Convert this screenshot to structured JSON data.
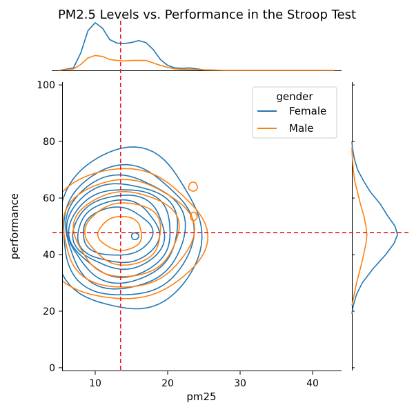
{
  "chart_data": {
    "type": "kde-joint",
    "title": "PM2.5 Levels vs. Performance in the Stroop Test",
    "xlabel": "pm25",
    "ylabel": "performance",
    "xlim": [
      4,
      44
    ],
    "ylim": [
      -1,
      101
    ],
    "xticks": [
      10,
      20,
      30,
      40
    ],
    "yticks": [
      0,
      20,
      40,
      60,
      80,
      100
    ],
    "reference_lines": {
      "x": 13.5,
      "y": 47.8,
      "color": "#e41a1c"
    },
    "legend": {
      "title": "gender",
      "position": "top-right"
    },
    "series": [
      {
        "name": "Female",
        "color": "#1f77b4",
        "contours": [
          {
            "cx": 14.5,
            "cy": 48.5,
            "rx": 10.0,
            "ry": 28.5
          },
          {
            "cx": 14.3,
            "cy": 48.0,
            "rx": 9.0,
            "ry": 23.0
          },
          {
            "cx": 14.0,
            "cy": 48.0,
            "rx": 8.2,
            "ry": 20.0
          },
          {
            "cx": 13.8,
            "cy": 48.0,
            "rx": 7.6,
            "ry": 17.5
          },
          {
            "cx": 13.6,
            "cy": 48.0,
            "rx": 7.0,
            "ry": 15.5
          },
          {
            "cx": 13.4,
            "cy": 48.0,
            "rx": 6.3,
            "ry": 13.0
          },
          {
            "cx": 13.2,
            "cy": 48.0,
            "rx": 5.6,
            "ry": 11.0
          },
          {
            "cx": 13.0,
            "cy": 48.0,
            "rx": 4.8,
            "ry": 8.5
          },
          {
            "cx": 15.5,
            "cy": 46.5,
            "rx": 0.5,
            "ry": 1.2
          }
        ],
        "marginal_x": [
          [
            5,
            0
          ],
          [
            7,
            0.05
          ],
          [
            8,
            0.35
          ],
          [
            9,
            0.8
          ],
          [
            10,
            0.96
          ],
          [
            11,
            0.85
          ],
          [
            12,
            0.62
          ],
          [
            13,
            0.55
          ],
          [
            14,
            0.54
          ],
          [
            15,
            0.56
          ],
          [
            16,
            0.6
          ],
          [
            17,
            0.56
          ],
          [
            18,
            0.42
          ],
          [
            19,
            0.22
          ],
          [
            20,
            0.1
          ],
          [
            21,
            0.05
          ],
          [
            22,
            0.04
          ],
          [
            23,
            0.05
          ],
          [
            24,
            0.03
          ],
          [
            25,
            0.01
          ],
          [
            28,
            0
          ],
          [
            43,
            0
          ]
        ],
        "marginal_y": [
          [
            19,
            0
          ],
          [
            22,
            0.03
          ],
          [
            26,
            0.1
          ],
          [
            30,
            0.22
          ],
          [
            35,
            0.45
          ],
          [
            40,
            0.72
          ],
          [
            44,
            0.9
          ],
          [
            47,
            0.97
          ],
          [
            50,
            0.92
          ],
          [
            54,
            0.75
          ],
          [
            58,
            0.6
          ],
          [
            62,
            0.4
          ],
          [
            66,
            0.25
          ],
          [
            70,
            0.12
          ],
          [
            74,
            0.05
          ],
          [
            78,
            0.01
          ],
          [
            80,
            0
          ]
        ]
      },
      {
        "name": "Male",
        "color": "#ff7f0e",
        "contours": [
          {
            "cx": 14.0,
            "cy": 47.0,
            "rx": 11.0,
            "ry": 23.0
          },
          {
            "cx": 14.3,
            "cy": 47.5,
            "rx": 9.0,
            "ry": 19.0
          },
          {
            "cx": 14.3,
            "cy": 47.5,
            "rx": 7.2,
            "ry": 15.0
          },
          {
            "cx": 14.0,
            "cy": 47.5,
            "rx": 5.2,
            "ry": 11.0
          },
          {
            "cx": 13.5,
            "cy": 47.5,
            "rx": 3.0,
            "ry": 6.0
          },
          {
            "cx": 23.5,
            "cy": 64.0,
            "rx": 0.6,
            "ry": 1.6
          },
          {
            "cx": 23.6,
            "cy": 53.5,
            "rx": 0.45,
            "ry": 1.5
          }
        ],
        "marginal_x": [
          [
            5,
            0
          ],
          [
            7,
            0.03
          ],
          [
            8,
            0.12
          ],
          [
            9,
            0.25
          ],
          [
            10,
            0.3
          ],
          [
            11,
            0.28
          ],
          [
            12,
            0.22
          ],
          [
            13,
            0.2
          ],
          [
            14,
            0.19
          ],
          [
            15,
            0.2
          ],
          [
            16,
            0.2
          ],
          [
            17,
            0.2
          ],
          [
            18,
            0.15
          ],
          [
            19,
            0.1
          ],
          [
            20,
            0.06
          ],
          [
            21,
            0.03
          ],
          [
            22,
            0.02
          ],
          [
            23,
            0.02
          ],
          [
            25,
            0.01
          ],
          [
            28,
            0
          ],
          [
            43,
            0
          ]
        ],
        "marginal_y": [
          [
            22,
            0
          ],
          [
            26,
            0.05
          ],
          [
            30,
            0.1
          ],
          [
            35,
            0.18
          ],
          [
            40,
            0.25
          ],
          [
            44,
            0.3
          ],
          [
            47,
            0.32
          ],
          [
            50,
            0.3
          ],
          [
            54,
            0.25
          ],
          [
            58,
            0.18
          ],
          [
            62,
            0.12
          ],
          [
            66,
            0.06
          ],
          [
            70,
            0.03
          ],
          [
            74,
            0.01
          ],
          [
            78,
            0
          ]
        ]
      }
    ]
  }
}
